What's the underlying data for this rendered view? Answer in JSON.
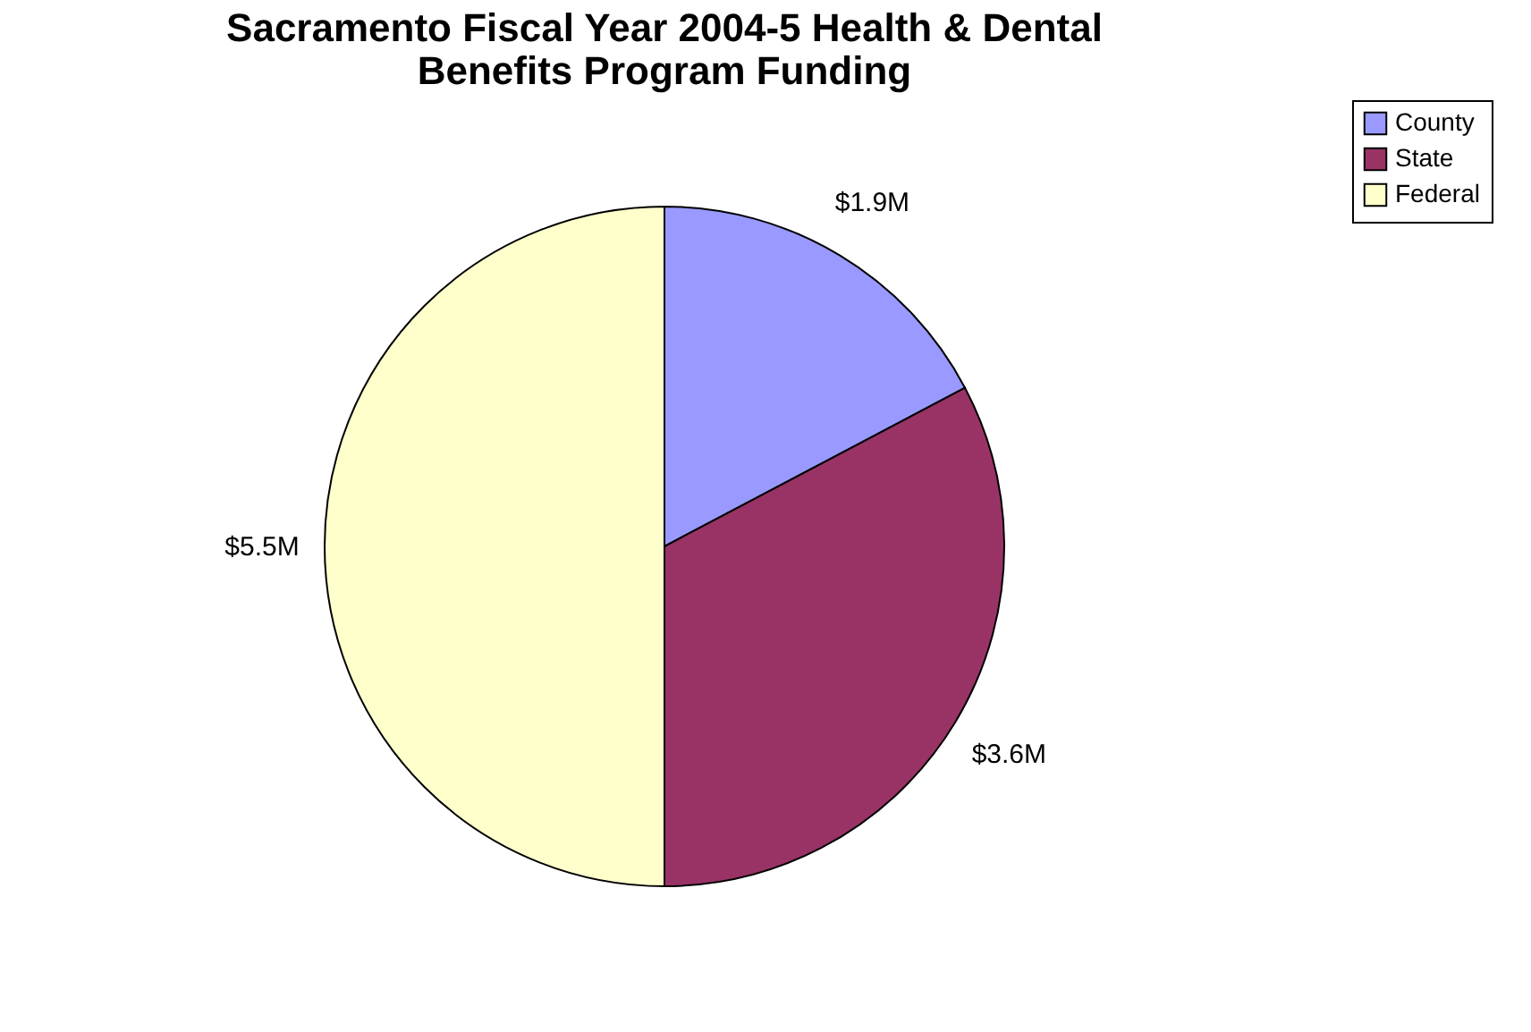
{
  "chart_data": {
    "type": "pie",
    "title": "Sacramento Fiscal Year 2004-5 Health & Dental Benefits Program Funding",
    "categories": [
      "County",
      "State",
      "Federal"
    ],
    "values": [
      1.9,
      3.6,
      5.5
    ],
    "value_labels": [
      "$1.9M",
      "$3.6M",
      "$5.5M"
    ],
    "colors": [
      "#9999ff",
      "#993366",
      "#ffffcc"
    ],
    "legend": "right"
  }
}
